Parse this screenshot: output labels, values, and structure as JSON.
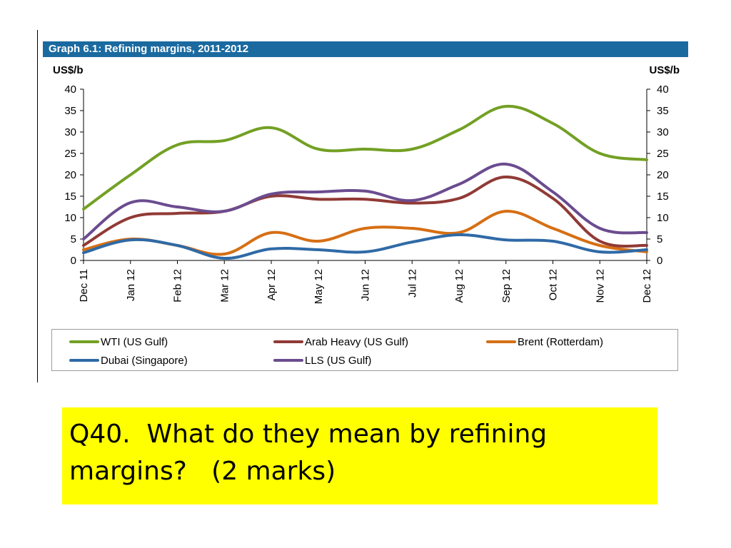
{
  "colors": {
    "title_bar": "#1a6aa0",
    "highlight": "#ffff00",
    "axis": "#000000"
  },
  "chart_data": {
    "type": "line",
    "title": "Graph 6.1: Refining margins, 2011-2012",
    "ylabel_left": "US$/b",
    "ylabel_right": "US$/b",
    "ylim": [
      0,
      40
    ],
    "yticks": [
      0,
      5,
      10,
      15,
      20,
      25,
      30,
      35,
      40
    ],
    "categories": [
      "Dec 11",
      "Jan 12",
      "Feb 12",
      "Mar 12",
      "Apr 12",
      "May 12",
      "Jun 12",
      "Jul 12",
      "Aug 12",
      "Sep 12",
      "Oct 12",
      "Nov 12",
      "Dec 12"
    ],
    "grid": false,
    "legend_position": "bottom",
    "series": [
      {
        "name": "WTI (US Gulf)",
        "color": "#73a024",
        "values": [
          12,
          20,
          27,
          28,
          31,
          26,
          26,
          26,
          30.5,
          36,
          32,
          25,
          23.5
        ]
      },
      {
        "name": "Arab Heavy (US Gulf)",
        "color": "#913a36",
        "values": [
          3.5,
          10,
          11,
          11.5,
          15,
          14.3,
          14.3,
          13.4,
          14.5,
          19.5,
          14.5,
          4.5,
          3.5
        ]
      },
      {
        "name": "Brent (Rotterdam)",
        "color": "#d66f14",
        "values": [
          2.5,
          5,
          3.5,
          1.5,
          6.5,
          4.5,
          7.5,
          7.5,
          6.5,
          11.5,
          7.5,
          3.5,
          2
        ]
      },
      {
        "name": "Dubai (Singapore)",
        "color": "#2f6aa6",
        "values": [
          1.8,
          4.8,
          3.5,
          0.5,
          2.7,
          2.5,
          2,
          4.3,
          6,
          4.8,
          4.5,
          2,
          2.5
        ]
      },
      {
        "name": "LLS (US Gulf)",
        "color": "#6b4c8f",
        "values": [
          5,
          13.5,
          12.5,
          11.5,
          15.5,
          16,
          16.2,
          14,
          17.8,
          22.5,
          16,
          7.5,
          6.5
        ]
      }
    ]
  },
  "question": {
    "text": "Q40.  What do they mean by refining margins?   (2 marks)"
  }
}
